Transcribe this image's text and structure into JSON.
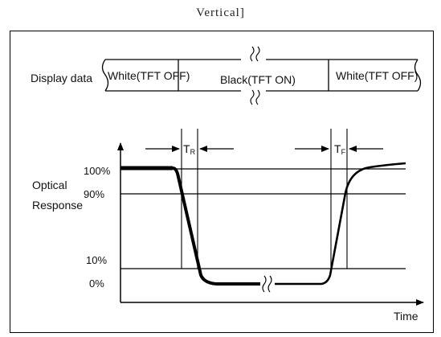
{
  "caption": "Vertical]",
  "diagram": {
    "display_data_label": "Display data",
    "segments": [
      "White(TFT OFF)",
      "Black(TFT ON)",
      "White(TFT OFF)"
    ],
    "y_axis_label_line1": "Optical",
    "y_axis_label_line2": "Response",
    "levels": [
      "100%",
      "90%",
      "10%",
      "0%"
    ],
    "x_axis_label": "Time",
    "rise_time_label": "T",
    "rise_time_sub": "R",
    "fall_time_label": "T",
    "fall_time_sub": "F"
  }
}
